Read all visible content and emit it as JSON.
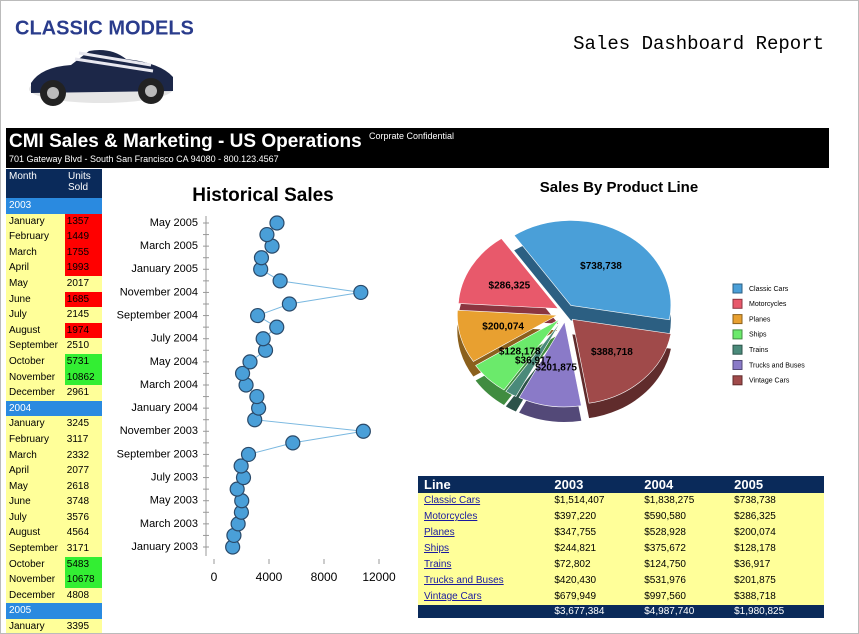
{
  "header": {
    "logo": "CLASSIC MODELS",
    "title": "Sales Dashboard Report"
  },
  "banner": {
    "title": "CMI Sales & Marketing - US Operations",
    "note": "Corprate Confidential",
    "address": "701 Gateway Blvd - South San Francisco CA 94080 - 800.123.4567"
  },
  "month_table": {
    "columns": [
      "Month",
      "Units Sold"
    ],
    "rows": [
      {
        "year": "2003"
      },
      {
        "month": "January",
        "units": 1357,
        "color": "#ff0000"
      },
      {
        "month": "February",
        "units": 1449,
        "color": "#ff0000"
      },
      {
        "month": "March",
        "units": 1755,
        "color": "#ff0000"
      },
      {
        "month": "April",
        "units": 1993,
        "color": "#ff0000"
      },
      {
        "month": "May",
        "units": 2017,
        "color": "#ffff99"
      },
      {
        "month": "June",
        "units": 1685,
        "color": "#ff0000"
      },
      {
        "month": "July",
        "units": 2145,
        "color": "#ffff99"
      },
      {
        "month": "August",
        "units": 1974,
        "color": "#ff0000"
      },
      {
        "month": "September",
        "units": 2510,
        "color": "#ffff99"
      },
      {
        "month": "October",
        "units": 5731,
        "color": "#33ee33"
      },
      {
        "month": "November",
        "units": 10862,
        "color": "#33ee33"
      },
      {
        "month": "December",
        "units": 2961,
        "color": "#ffff99"
      },
      {
        "year": "2004"
      },
      {
        "month": "January",
        "units": 3245,
        "color": "#ffff99"
      },
      {
        "month": "February",
        "units": 3117,
        "color": "#ffff99"
      },
      {
        "month": "March",
        "units": 2332,
        "color": "#ffff99"
      },
      {
        "month": "April",
        "units": 2077,
        "color": "#ffff99"
      },
      {
        "month": "May",
        "units": 2618,
        "color": "#ffff99"
      },
      {
        "month": "June",
        "units": 3748,
        "color": "#ffff99"
      },
      {
        "month": "July",
        "units": 3576,
        "color": "#ffff99"
      },
      {
        "month": "August",
        "units": 4564,
        "color": "#ffff99"
      },
      {
        "month": "September",
        "units": 3171,
        "color": "#ffff99"
      },
      {
        "month": "October",
        "units": 5483,
        "color": "#33ee33"
      },
      {
        "month": "November",
        "units": 10678,
        "color": "#33ee33"
      },
      {
        "month": "December",
        "units": 4808,
        "color": "#ffff99"
      },
      {
        "year": "2005"
      },
      {
        "month": "January",
        "units": 3395,
        "color": "#ffff99"
      }
    ]
  },
  "chart_data": [
    {
      "type": "line",
      "title": "Historical Sales",
      "categories": [
        "January 2003",
        null,
        "March 2003",
        null,
        "May 2003",
        null,
        "July 2003",
        null,
        "September 2003",
        null,
        "November 2003",
        null,
        "January 2004",
        null,
        "March 2004",
        null,
        "May 2004",
        null,
        "July 2004",
        null,
        "September 2004",
        null,
        "November 2004",
        null,
        "January 2005",
        null,
        "March 2005",
        null,
        "May 2005"
      ],
      "values": [
        1357,
        1449,
        1755,
        1993,
        2017,
        1685,
        2145,
        1974,
        2510,
        5731,
        10862,
        2961,
        3245,
        3117,
        2332,
        2077,
        2618,
        3748,
        3576,
        4564,
        3171,
        5483,
        10678,
        4808,
        3395,
        3450,
        4220,
        3850,
        4580
      ],
      "color": "#4a9fd8",
      "xlim": [
        0,
        12000
      ],
      "xticks": [
        0,
        4000,
        8000,
        12000
      ]
    },
    {
      "type": "pie",
      "title": "Sales By Product Line",
      "categories": [
        "Classic Cars",
        "Motorcycles",
        "Planes",
        "Ships",
        "Trains",
        "Trucks and Buses",
        "Vintage Cars"
      ],
      "values": [
        738738,
        286325,
        200074,
        128178,
        36917,
        201875,
        388718
      ],
      "value_labels": [
        "$738,738",
        "$286,325",
        "$200,074",
        "$128,178",
        "$36,917",
        "$201,875",
        "$388,718"
      ],
      "colors": [
        "#4a9fd8",
        "#e8596b",
        "#e8a030",
        "#6bea6b",
        "#4a8a7a",
        "#8a7ac8",
        "#a04a4a"
      ],
      "legend": "right"
    }
  ],
  "product_table": {
    "columns": [
      "Line",
      "2003",
      "2004",
      "2005"
    ],
    "rows": [
      [
        "Classic Cars",
        "$1,514,407",
        "$1,838,275",
        "$738,738"
      ],
      [
        "Motorcycles",
        "$397,220",
        "$590,580",
        "$286,325"
      ],
      [
        "Planes",
        "$347,755",
        "$528,928",
        "$200,074"
      ],
      [
        "Ships",
        "$244,821",
        "$375,672",
        "$128,178"
      ],
      [
        "Trains",
        "$72,802",
        "$124,750",
        "$36,917"
      ],
      [
        "Trucks and Buses",
        "$420,430",
        "$531,976",
        "$201,875"
      ],
      [
        "Vintage Cars",
        "$679,949",
        "$997,560",
        "$388,718"
      ]
    ],
    "totals": [
      "$3,677,384",
      "$4,987,740",
      "$1,980,825"
    ]
  }
}
